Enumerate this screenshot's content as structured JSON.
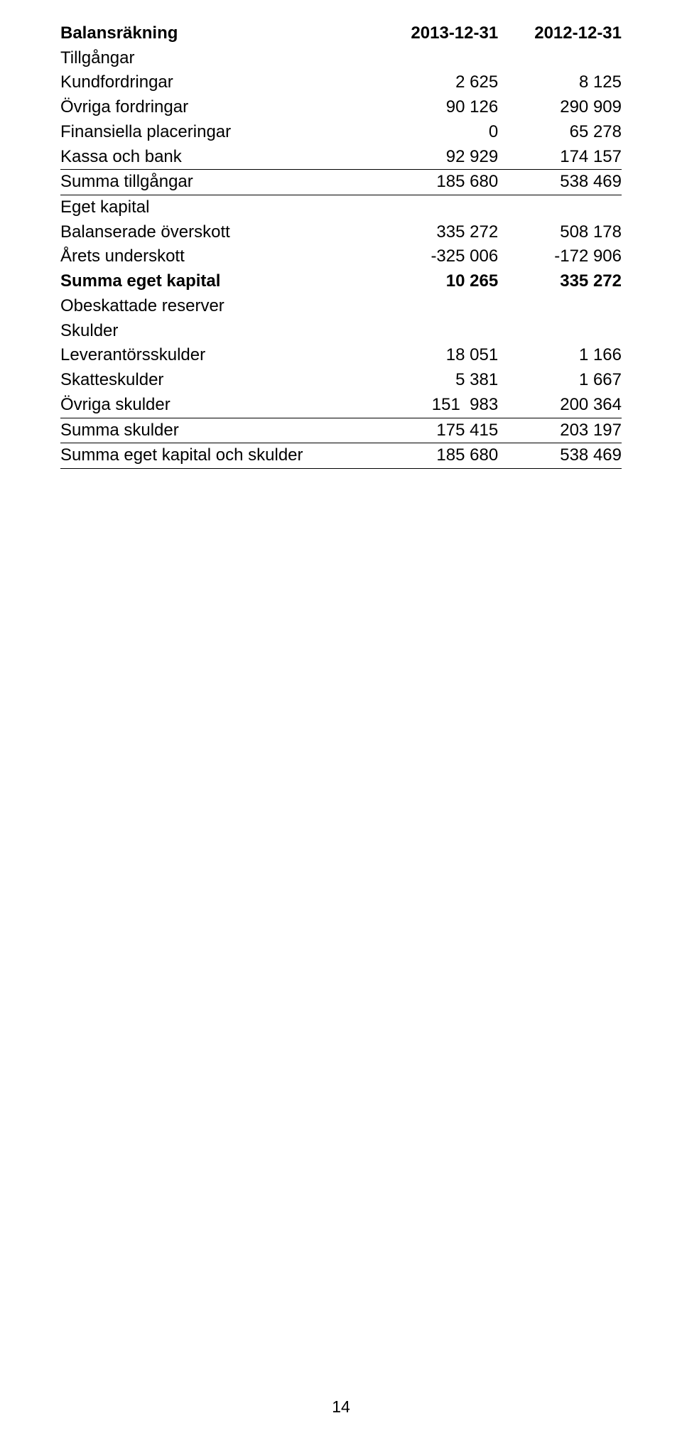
{
  "title": "Balansräkning",
  "col1_header": "2013-12-31",
  "col2_header": "2012-12-31",
  "sections": {
    "tillgangar": {
      "heading": "Tillgångar",
      "rows": {
        "kundfordringar": {
          "label": "Kundfordringar",
          "v1": "2 625",
          "v2": "8 125"
        },
        "ovriga_fordringar": {
          "label": "Övriga fordringar",
          "v1": "90 126",
          "v2": "290 909"
        },
        "fin_placeringar": {
          "label": "Finansiella placeringar",
          "v1": "0",
          "v2": "65 278"
        },
        "kassa_bank": {
          "label": "Kassa och bank",
          "v1": "92 929",
          "v2": "174 157"
        }
      },
      "sum": {
        "label": "Summa tillgångar",
        "v1": "185 680",
        "v2": "538 469"
      }
    },
    "eget_kapital": {
      "heading": "Eget kapital",
      "rows": {
        "bal_overskott": {
          "label": "Balanserade överskott",
          "v1": "335 272",
          "v2": "508 178"
        },
        "arets_underskott": {
          "label": "Årets underskott",
          "v1": "-325 006",
          "v2": "-172 906"
        }
      },
      "sum": {
        "label": "Summa eget kapital",
        "v1": "10 265",
        "v2": "335 272"
      }
    },
    "obeskattade": {
      "heading": "Obeskattade reserver"
    },
    "skulder": {
      "heading": "Skulder",
      "rows": {
        "lev": {
          "label": "Leverantörsskulder",
          "v1": "18 051",
          "v2": "1 166"
        },
        "skatt": {
          "label": "Skatteskulder",
          "v1": "5 381",
          "v2": "1 667"
        },
        "ovr": {
          "label": "Övriga skulder",
          "v1": "151  983",
          "v2": "200 364"
        }
      },
      "sum": {
        "label": "Summa skulder",
        "v1": "175 415",
        "v2": "203 197"
      }
    },
    "total": {
      "label": "Summa eget kapital och skulder",
      "v1": "185 680",
      "v2": "538 469"
    }
  },
  "page_number": "14"
}
